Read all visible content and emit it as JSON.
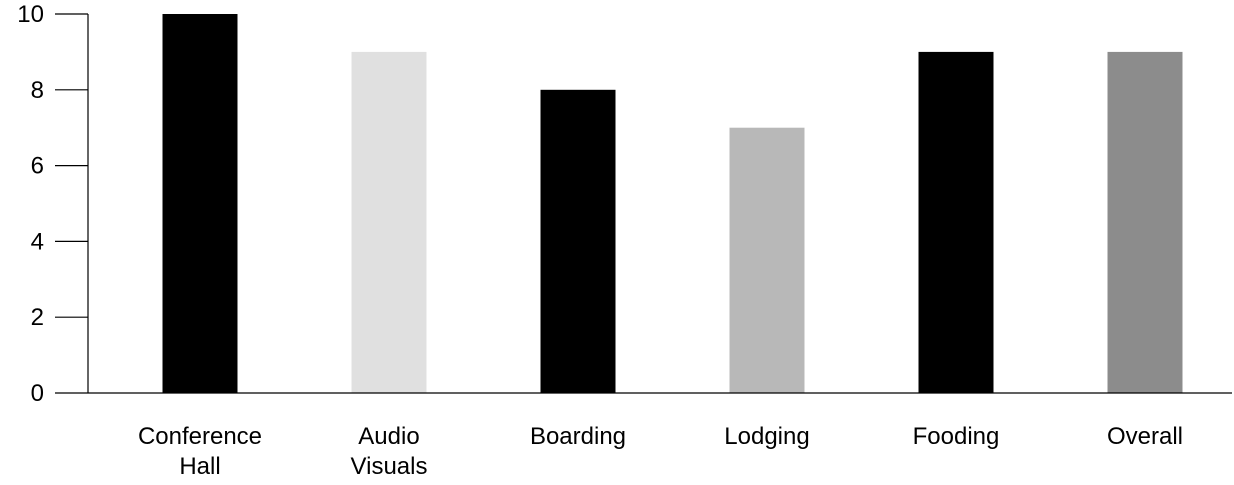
{
  "chart_data": {
    "type": "bar",
    "categories": [
      [
        "Conference",
        "Hall"
      ],
      [
        "Audio",
        "Visuals"
      ],
      [
        "Boarding"
      ],
      [
        "Lodging"
      ],
      [
        "Fooding"
      ],
      [
        "Overall"
      ]
    ],
    "values": [
      10,
      9,
      8,
      7,
      9,
      9
    ],
    "bar_colors": [
      "#000000",
      "#e0e0e0",
      "#000000",
      "#b8b8b8",
      "#000000",
      "#8c8c8c"
    ],
    "ylim": [
      0,
      10
    ],
    "yticks": [
      "0",
      "2",
      "4",
      "6",
      "8",
      "10"
    ],
    "grid": false,
    "legend": "none"
  }
}
